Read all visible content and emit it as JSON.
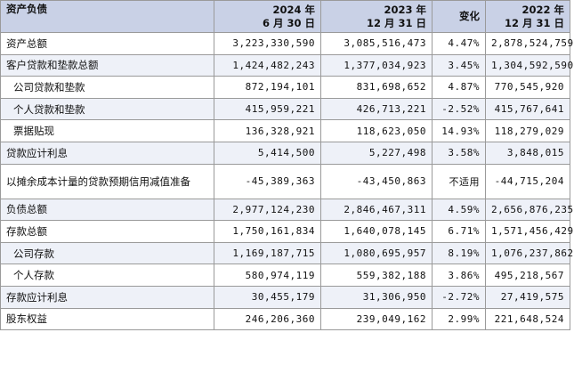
{
  "header": {
    "label": "资产负债",
    "col1_year": "2024 年",
    "col1_date": "6 月 30 日",
    "col2_year": "2023 年",
    "col2_date": "12 月 31 日",
    "col3": "变化",
    "col4_year": "2022 年",
    "col4_date": "12 月 31 日"
  },
  "rows": [
    {
      "label": "资产总额",
      "v2024": "3,223,330,590",
      "v2023": "3,085,516,473",
      "change": "4.47%",
      "v2022": "2,878,524,759"
    },
    {
      "label": "客户贷款和垫款总额",
      "v2024": "1,424,482,243",
      "v2023": "1,377,034,923",
      "change": "3.45%",
      "v2022": "1,304,592,590"
    },
    {
      "label": "公司贷款和垫款",
      "v2024": "872,194,101",
      "v2023": "831,698,652",
      "change": "4.87%",
      "v2022": "770,545,920"
    },
    {
      "label": "个人贷款和垫款",
      "v2024": "415,959,221",
      "v2023": "426,713,221",
      "change": "-2.52%",
      "v2022": "415,767,641"
    },
    {
      "label": "票据贴现",
      "v2024": "136,328,921",
      "v2023": "118,623,050",
      "change": "14.93%",
      "v2022": "118,279,029"
    },
    {
      "label": "贷款应计利息",
      "v2024": "5,414,500",
      "v2023": "5,227,498",
      "change": "3.58%",
      "v2022": "3,848,015"
    },
    {
      "label": "以摊余成本计量的贷款预期信用减值准备",
      "v2024": "-45,389,363",
      "v2023": "-43,450,863",
      "change": "不适用",
      "v2022": "-44,715,204"
    },
    {
      "label": "负债总额",
      "v2024": "2,977,124,230",
      "v2023": "2,846,467,311",
      "change": "4.59%",
      "v2022": "2,656,876,235"
    },
    {
      "label": "存款总额",
      "v2024": "1,750,161,834",
      "v2023": "1,640,078,145",
      "change": "6.71%",
      "v2022": "1,571,456,429"
    },
    {
      "label": "公司存款",
      "v2024": "1,169,187,715",
      "v2023": "1,080,695,957",
      "change": "8.19%",
      "v2022": "1,076,237,862"
    },
    {
      "label": "个人存款",
      "v2024": "580,974,119",
      "v2023": "559,382,188",
      "change": "3.86%",
      "v2022": "495,218,567"
    },
    {
      "label": "存款应计利息",
      "v2024": "30,455,179",
      "v2023": "31,306,950",
      "change": "-2.72%",
      "v2022": "27,419,575"
    },
    {
      "label": "股东权益",
      "v2024": "246,206,360",
      "v2023": "239,049,162",
      "change": "2.99%",
      "v2022": "221,648,524"
    }
  ]
}
